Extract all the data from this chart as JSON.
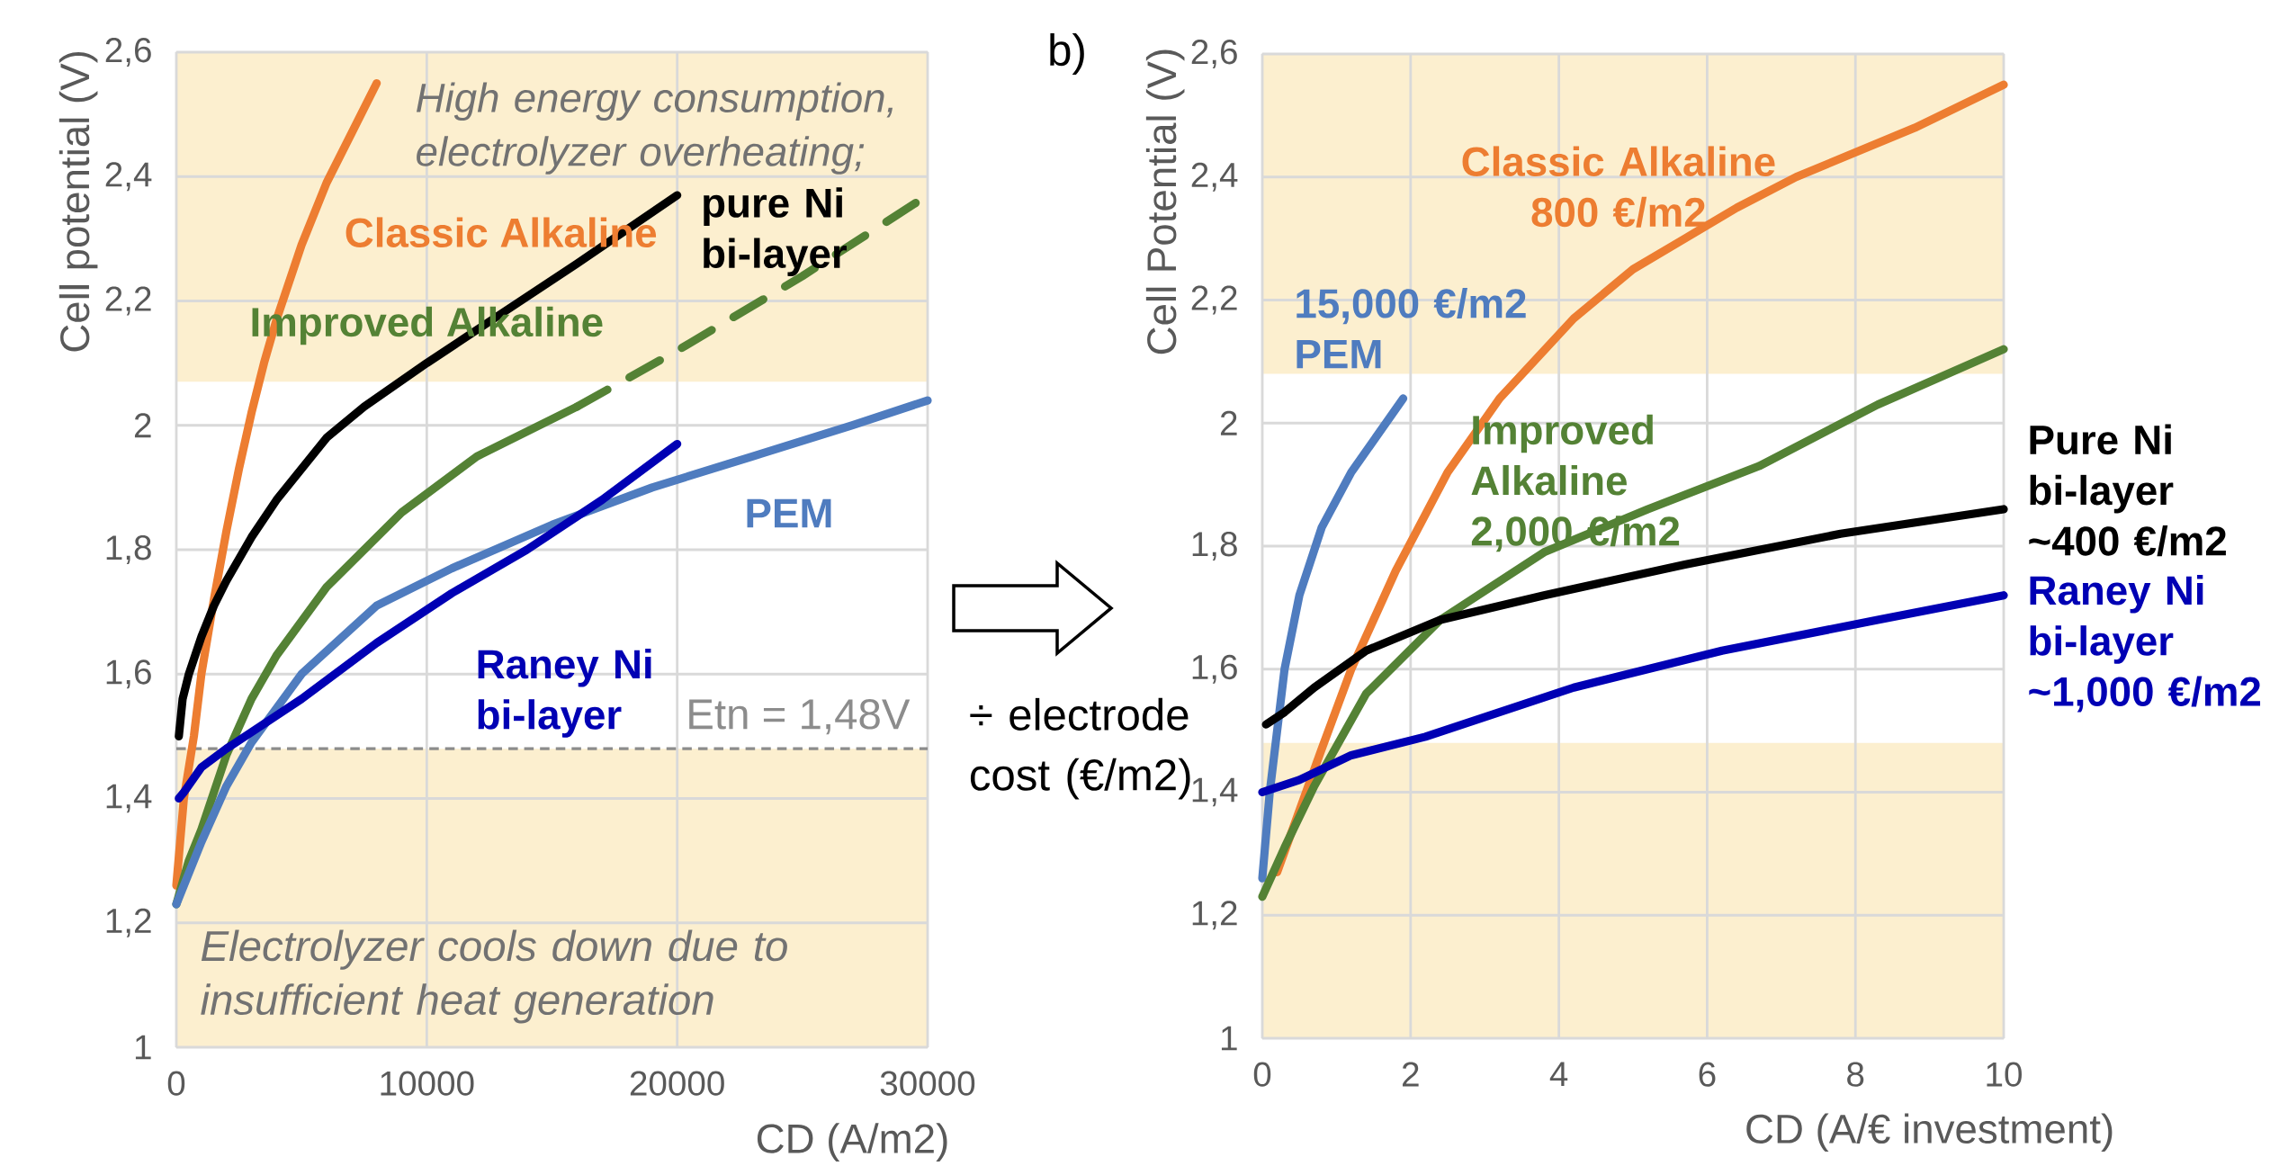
{
  "chart_data": [
    {
      "type": "line",
      "xlabel": "CD (A/m2)",
      "ylabel": "Cell potential (V)",
      "xlim": [
        0,
        30000
      ],
      "ylim": [
        1,
        2.6
      ],
      "xticks": [
        0,
        10000,
        20000,
        30000
      ],
      "yticks": [
        1,
        {
          "value": 1.2,
          "label": "1,2"
        },
        {
          "value": 1.4,
          "label": "1,4"
        },
        {
          "value": 1.6,
          "label": "1,6"
        },
        {
          "value": 1.8,
          "label": "1,8"
        },
        2,
        {
          "value": 2.2,
          "label": "2,2"
        },
        {
          "value": 2.4,
          "label": "2,4"
        },
        {
          "value": 2.6,
          "label": "2,6"
        }
      ],
      "grid": true,
      "series": [
        {
          "name": "Classic Alkaline",
          "color": "#ed7d31",
          "x": [
            0,
            150,
            300,
            500,
            700,
            1000,
            1500,
            2000,
            2500,
            3000,
            3500,
            4000,
            5000,
            6000,
            7000,
            8000
          ],
          "values": [
            1.26,
            1.33,
            1.4,
            1.45,
            1.5,
            1.6,
            1.72,
            1.83,
            1.93,
            2.02,
            2.1,
            2.17,
            2.29,
            2.39,
            2.47,
            2.55
          ]
        },
        {
          "name": "pure Ni bi-layer",
          "color": "#000000",
          "x": [
            100,
            250,
            500,
            1000,
            1500,
            2000,
            3000,
            4000,
            5000,
            6000,
            7500,
            10000,
            13000,
            16000,
            20000
          ],
          "values": [
            1.5,
            1.56,
            1.6,
            1.66,
            1.71,
            1.75,
            1.82,
            1.88,
            1.93,
            1.98,
            2.03,
            2.1,
            2.18,
            2.26,
            2.37
          ]
        },
        {
          "name": "Improved Alkaline",
          "color": "#548235",
          "line_style": "solid",
          "x": [
            0,
            500,
            1000,
            2000,
            3000,
            4000,
            6000,
            9000,
            12000,
            16000
          ],
          "values": [
            1.23,
            1.3,
            1.35,
            1.47,
            1.56,
            1.63,
            1.74,
            1.86,
            1.95,
            2.03
          ]
        },
        {
          "color": "#548235",
          "line_style": "dashed",
          "x": [
            16000,
            20000,
            25000,
            30000
          ],
          "values": [
            2.03,
            2.12,
            2.24,
            2.37
          ]
        },
        {
          "name": "PEM",
          "color": "#4f7cbf",
          "x": [
            0,
            1000,
            2000,
            3000,
            5000,
            8000,
            11000,
            15000,
            19000,
            23000,
            27000,
            30000
          ],
          "values": [
            1.23,
            1.33,
            1.42,
            1.49,
            1.6,
            1.71,
            1.77,
            1.84,
            1.9,
            1.95,
            2.0,
            2.04
          ]
        },
        {
          "name": "Raney Ni bi-layer",
          "color": "#0000b4",
          "x": [
            100,
            300,
            1000,
            2000,
            5000,
            8000,
            11000,
            14000,
            17000,
            20000
          ],
          "values": [
            1.4,
            1.41,
            1.45,
            1.48,
            1.56,
            1.65,
            1.73,
            1.8,
            1.88,
            1.97
          ]
        }
      ],
      "bands": [
        {
          "axis": "y",
          "from": 2.07,
          "to": 2.6,
          "color": "#fcefcf",
          "label": "High energy consumption, electrolyzer overheating;"
        },
        {
          "axis": "y",
          "from": 1,
          "to": 1.48,
          "color": "#fcefcf",
          "label": "Electrolyzer cools down due to insufficient heat generation"
        }
      ],
      "ref_lines": [
        {
          "axis": "y",
          "value": 1.48,
          "label": "Etn = 1,48V",
          "color": "#8c8c8c",
          "line_style": "dashed"
        }
      ],
      "annotations": [
        "÷ electrode cost (€/m2)"
      ]
    },
    {
      "type": "line",
      "xlabel": "CD (A/€ investment)",
      "ylabel": "Cell Potential (V)",
      "xlim": [
        0,
        10
      ],
      "ylim": [
        1,
        2.6
      ],
      "xticks": [
        0,
        2,
        4,
        6,
        8,
        10
      ],
      "yticks": [
        1,
        {
          "value": 1.2,
          "label": "1,2"
        },
        {
          "value": 1.4,
          "label": "1,4"
        },
        {
          "value": 1.6,
          "label": "1,6"
        },
        {
          "value": 1.8,
          "label": "1,8"
        },
        2,
        {
          "value": 2.2,
          "label": "2,2"
        },
        {
          "value": 2.4,
          "label": "2,4"
        },
        {
          "value": 2.6,
          "label": "2,6"
        }
      ],
      "grid": true,
      "series": [
        {
          "name": "15,000 €/m2 PEM",
          "color": "#4f7cbf",
          "x": [
            0,
            0.1,
            0.2,
            0.3,
            0.5,
            0.8,
            1.2,
            1.9
          ],
          "values": [
            1.26,
            1.4,
            1.5,
            1.6,
            1.72,
            1.83,
            1.92,
            2.04
          ]
        },
        {
          "name": "Classic Alkaline 800 €/m2",
          "color": "#ed7d31",
          "x": [
            0.2,
            0.5,
            0.8,
            1.2,
            1.8,
            2.5,
            3.2,
            4.2,
            5,
            5.7,
            6.4,
            7.2,
            8,
            8.8,
            10
          ],
          "values": [
            1.27,
            1.37,
            1.47,
            1.6,
            1.76,
            1.92,
            2.04,
            2.17,
            2.25,
            2.3,
            2.35,
            2.4,
            2.44,
            2.48,
            2.55
          ]
        },
        {
          "name": "Improved Alkaline 2,000 €/m2",
          "color": "#548235",
          "x": [
            0,
            0.3,
            0.7,
            1.4,
            2.4,
            3.8,
            5.2,
            6.7,
            8.3,
            10
          ],
          "values": [
            1.23,
            1.31,
            1.41,
            1.56,
            1.68,
            1.79,
            1.86,
            1.93,
            2.03,
            2.12
          ]
        },
        {
          "name": "Pure Ni bi-layer ~400 €/m2",
          "color": "#000000",
          "x": [
            0.05,
            0.3,
            0.7,
            1.4,
            2.4,
            3.8,
            5.7,
            7.8,
            10
          ],
          "values": [
            1.51,
            1.53,
            1.57,
            1.63,
            1.68,
            1.72,
            1.77,
            1.82,
            1.86
          ]
        },
        {
          "name": "Raney Ni bi-layer ~1,000 €/m2",
          "color": "#0000b4",
          "x": [
            0,
            0.5,
            1.2,
            2.2,
            4.2,
            6.2,
            8.3,
            10
          ],
          "values": [
            1.4,
            1.42,
            1.46,
            1.49,
            1.57,
            1.63,
            1.68,
            1.72
          ]
        }
      ],
      "bands": [
        {
          "axis": "y",
          "from": 2.08,
          "to": 2.6,
          "color": "#fcefcf"
        },
        {
          "axis": "y",
          "from": 1,
          "to": 1.48,
          "color": "#fcefcf"
        }
      ],
      "annotations": [
        "b)"
      ]
    }
  ]
}
